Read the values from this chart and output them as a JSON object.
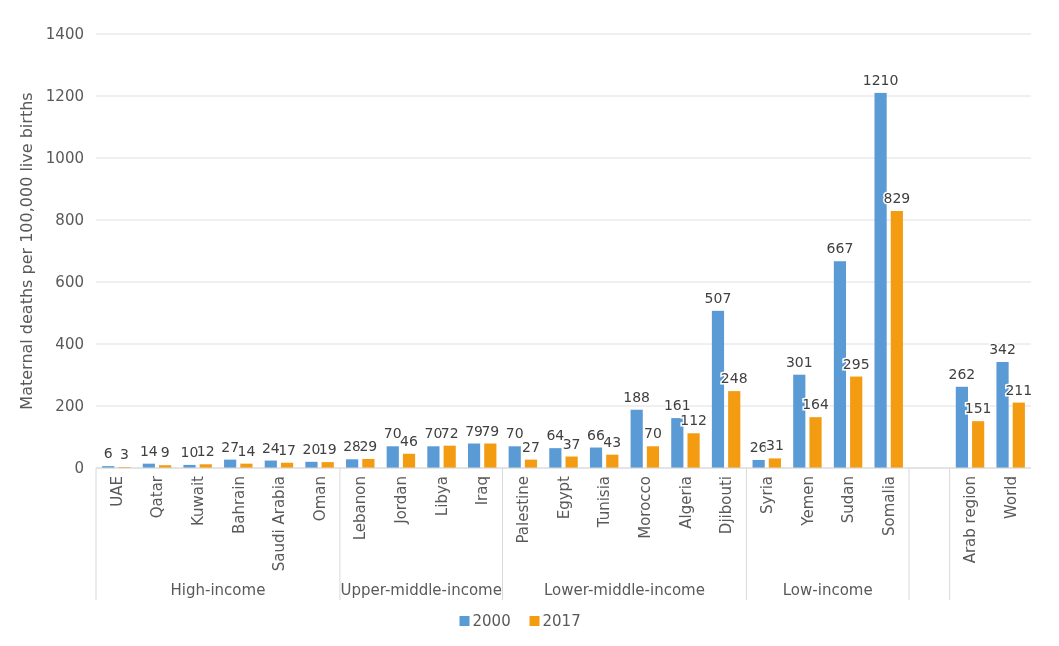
{
  "chart_data": {
    "type": "bar",
    "ylabel": "Maternal deaths per 100,000 live births",
    "categories": [
      "UAE",
      "Qatar",
      "Kuwait",
      "Bahrain",
      "Saudi Arabia",
      "Oman",
      "Lebanon",
      "Jordan",
      "Libya",
      "Iraq",
      "Palestine",
      "Egypt",
      "Tunisia",
      "Morocco",
      "Algeria",
      "Djibouti",
      "Syria",
      "Yemen",
      "Sudan",
      "Somalia",
      null,
      "Arab region",
      "World"
    ],
    "series": [
      {
        "name": "2000",
        "color": "#5b9bd5",
        "values": [
          6,
          14,
          10,
          27,
          24,
          20,
          28,
          70,
          70,
          79,
          70,
          64,
          66,
          188,
          161,
          507,
          26,
          301,
          667,
          1210,
          null,
          262,
          342
        ]
      },
      {
        "name": "2017",
        "color": "#f39c12",
        "values": [
          3,
          9,
          12,
          14,
          17,
          19,
          29,
          46,
          72,
          79,
          27,
          37,
          43,
          70,
          112,
          248,
          31,
          164,
          295,
          829,
          null,
          151,
          211
        ]
      }
    ],
    "ylim": [
      0,
      1400
    ],
    "yticks": [
      0,
      200,
      400,
      600,
      800,
      1000,
      1200,
      1400
    ],
    "grid": "y",
    "data_labels": true,
    "legend": "bottom",
    "annotations": [
      "High-income",
      "Upper-middle-income",
      "Lower-middle-income",
      "Low-income"
    ]
  }
}
